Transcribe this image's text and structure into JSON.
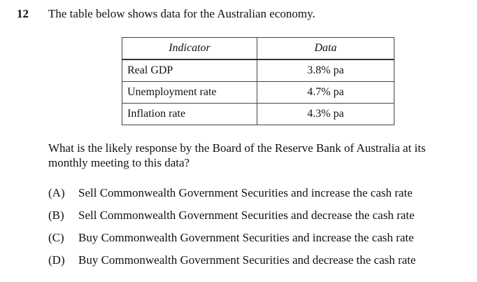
{
  "question_number": "12",
  "stem": "The table below shows data for the Australian economy.",
  "table": {
    "headers": [
      "Indicator",
      "Data"
    ],
    "rows": [
      {
        "indicator": "Real GDP",
        "data": "3.8% pa"
      },
      {
        "indicator": "Unemployment rate",
        "data": "4.7% pa"
      },
      {
        "indicator": "Inflation rate",
        "data": "4.3% pa"
      }
    ]
  },
  "question": "What is the likely response by the Board of the Reserve Bank of Australia at its monthly meeting to this data?",
  "options": [
    {
      "letter": "(A)",
      "text": "Sell Commonwealth Government Securities and increase the cash rate"
    },
    {
      "letter": "(B)",
      "text": "Sell Commonwealth Government Securities and decrease the cash rate"
    },
    {
      "letter": "(C)",
      "text": "Buy Commonwealth Government Securities and increase the cash rate"
    },
    {
      "letter": "(D)",
      "text": "Buy Commonwealth Government Securities and decrease the cash rate"
    }
  ]
}
